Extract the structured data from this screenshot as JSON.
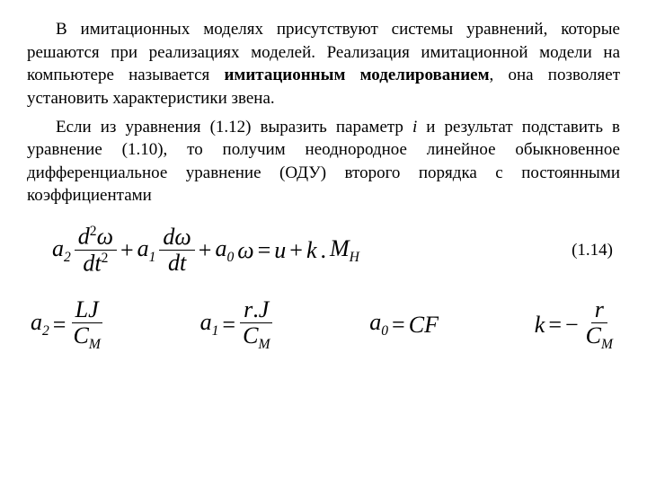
{
  "text": {
    "p1_a": "В имитационных моделях присутствуют системы уравнений, которые решаются при реализациях моделей. Реализация имитационной модели на компьютере называется ",
    "p1_b": "имитационным моделированием",
    "p1_c": ", она позволяет установить характеристики звена.",
    "p2_a": "Если из уравнения (1.12) выразить параметр ",
    "p2_i": "i",
    "p2_b": " и результат подставить в уравнение (1.10), то получим неоднородное линейное обыкновенное дифференциальное уравнение (ОДУ) второго порядка с постоянными коэффициентами"
  },
  "equation": {
    "label": "(1.14)",
    "a": "a",
    "sub2": "2",
    "sub1": "1",
    "sub0": "0",
    "d": "d",
    "omega": "ω",
    "t": "t",
    "plus": "+",
    "eq": "=",
    "u": "u",
    "k": "k",
    "dot": ".",
    "M": "M",
    "H": "Н",
    "sup2": "2"
  },
  "coeffs": {
    "a": "a",
    "sub2": "2",
    "sub1": "1",
    "sub0": "0",
    "eq": "=",
    "L": "L",
    "J": "J",
    "C": "C",
    "M": "М",
    "r": "r",
    "F": "F",
    "k": "k",
    "minus": "−"
  }
}
